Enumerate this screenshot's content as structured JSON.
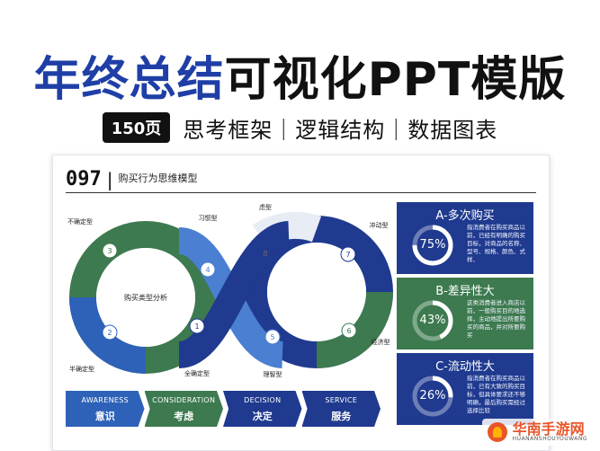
{
  "header": {
    "title_part1": "年终总结",
    "title_part2": "可视化PPT模版",
    "pages_badge": "150页",
    "subtitle": "思考框架｜逻辑结构｜数据图表"
  },
  "slide": {
    "number": "097",
    "title": "购买行为思维模型",
    "center_label": "购买类型分析",
    "nodes": [
      {
        "num": "1",
        "label": "全确定型"
      },
      {
        "num": "2",
        "label": "半确定型"
      },
      {
        "num": "3",
        "label": "不确定型"
      },
      {
        "num": "4",
        "label": "习惯型"
      },
      {
        "num": "5",
        "label": "理智型"
      },
      {
        "num": "6",
        "label": "经济型"
      },
      {
        "num": "7",
        "label": "冲动型"
      },
      {
        "num": "8",
        "label": "虑型"
      }
    ],
    "cards": [
      {
        "title": "A-多次购买",
        "percent_label": "75%",
        "percent": 0.75,
        "desc": "指消费者在购买商品以前，已经有明确的购买目标，对商品的名称、型号、规格、颜色、式样、",
        "color": "#1f3a8f"
      },
      {
        "title": "B-差异性大",
        "percent_label": "43%",
        "percent": 0.43,
        "desc": "这类消费者进入商店以前，一般购买目的地选择，主动地提出所要购买的商品，并对所要购买",
        "color": "#3d7a4f"
      },
      {
        "title": "C-流动性大",
        "percent_label": "26%",
        "percent": 0.26,
        "desc": "指消费者在购买商品以前，已有大致的购买目标，但具体要求还不够明确，最后购买需经过选择比较",
        "color": "#1f3a8f"
      }
    ],
    "stages": [
      {
        "en": "AWARENESS",
        "cn": "意识",
        "color": "#2e62b8"
      },
      {
        "en": "CONSIDERATION",
        "cn": "考虑",
        "color": "#3d7a4f"
      },
      {
        "en": "DECISION",
        "cn": "决定",
        "color": "#1f3a8f"
      },
      {
        "en": "SERVICE",
        "cn": "服务",
        "color": "#1f3a8f"
      }
    ]
  },
  "watermark": {
    "cn": "华南手游网",
    "en": "HUANANSHOUYOUWANG"
  },
  "colors": {
    "blue": "#1f3fa6",
    "navy": "#1f3a8f",
    "green": "#3d7a4f",
    "light_blue": "#4a7fd1"
  }
}
